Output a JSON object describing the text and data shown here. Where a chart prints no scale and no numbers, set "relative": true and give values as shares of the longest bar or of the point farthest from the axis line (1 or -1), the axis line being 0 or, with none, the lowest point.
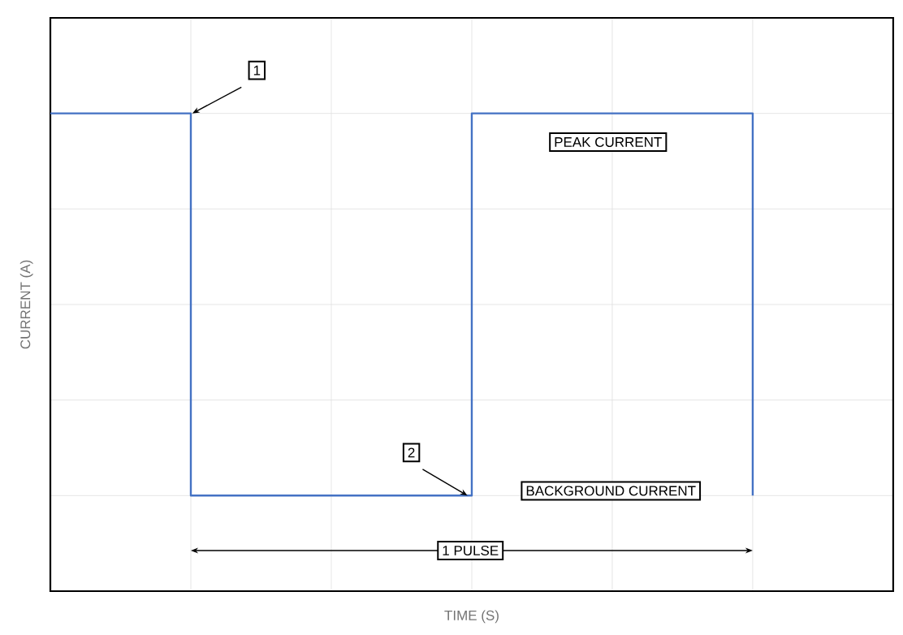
{
  "chart_data": {
    "type": "step",
    "relative": true,
    "xlabel": "TIME (S)",
    "ylabel": "CURRENT (A)",
    "categories": [
      null,
      null,
      null,
      null,
      null,
      null,
      null
    ],
    "series": [
      {
        "color": "#4472c4",
        "values": [
          1,
          0.2,
          0.2,
          1,
          1,
          0.2,
          null
        ]
      }
    ],
    "annotations": [
      "1",
      "PEAK CURRENT",
      "2",
      "BACKGROUND CURRENT",
      "1 PULSE"
    ],
    "grid": true
  }
}
